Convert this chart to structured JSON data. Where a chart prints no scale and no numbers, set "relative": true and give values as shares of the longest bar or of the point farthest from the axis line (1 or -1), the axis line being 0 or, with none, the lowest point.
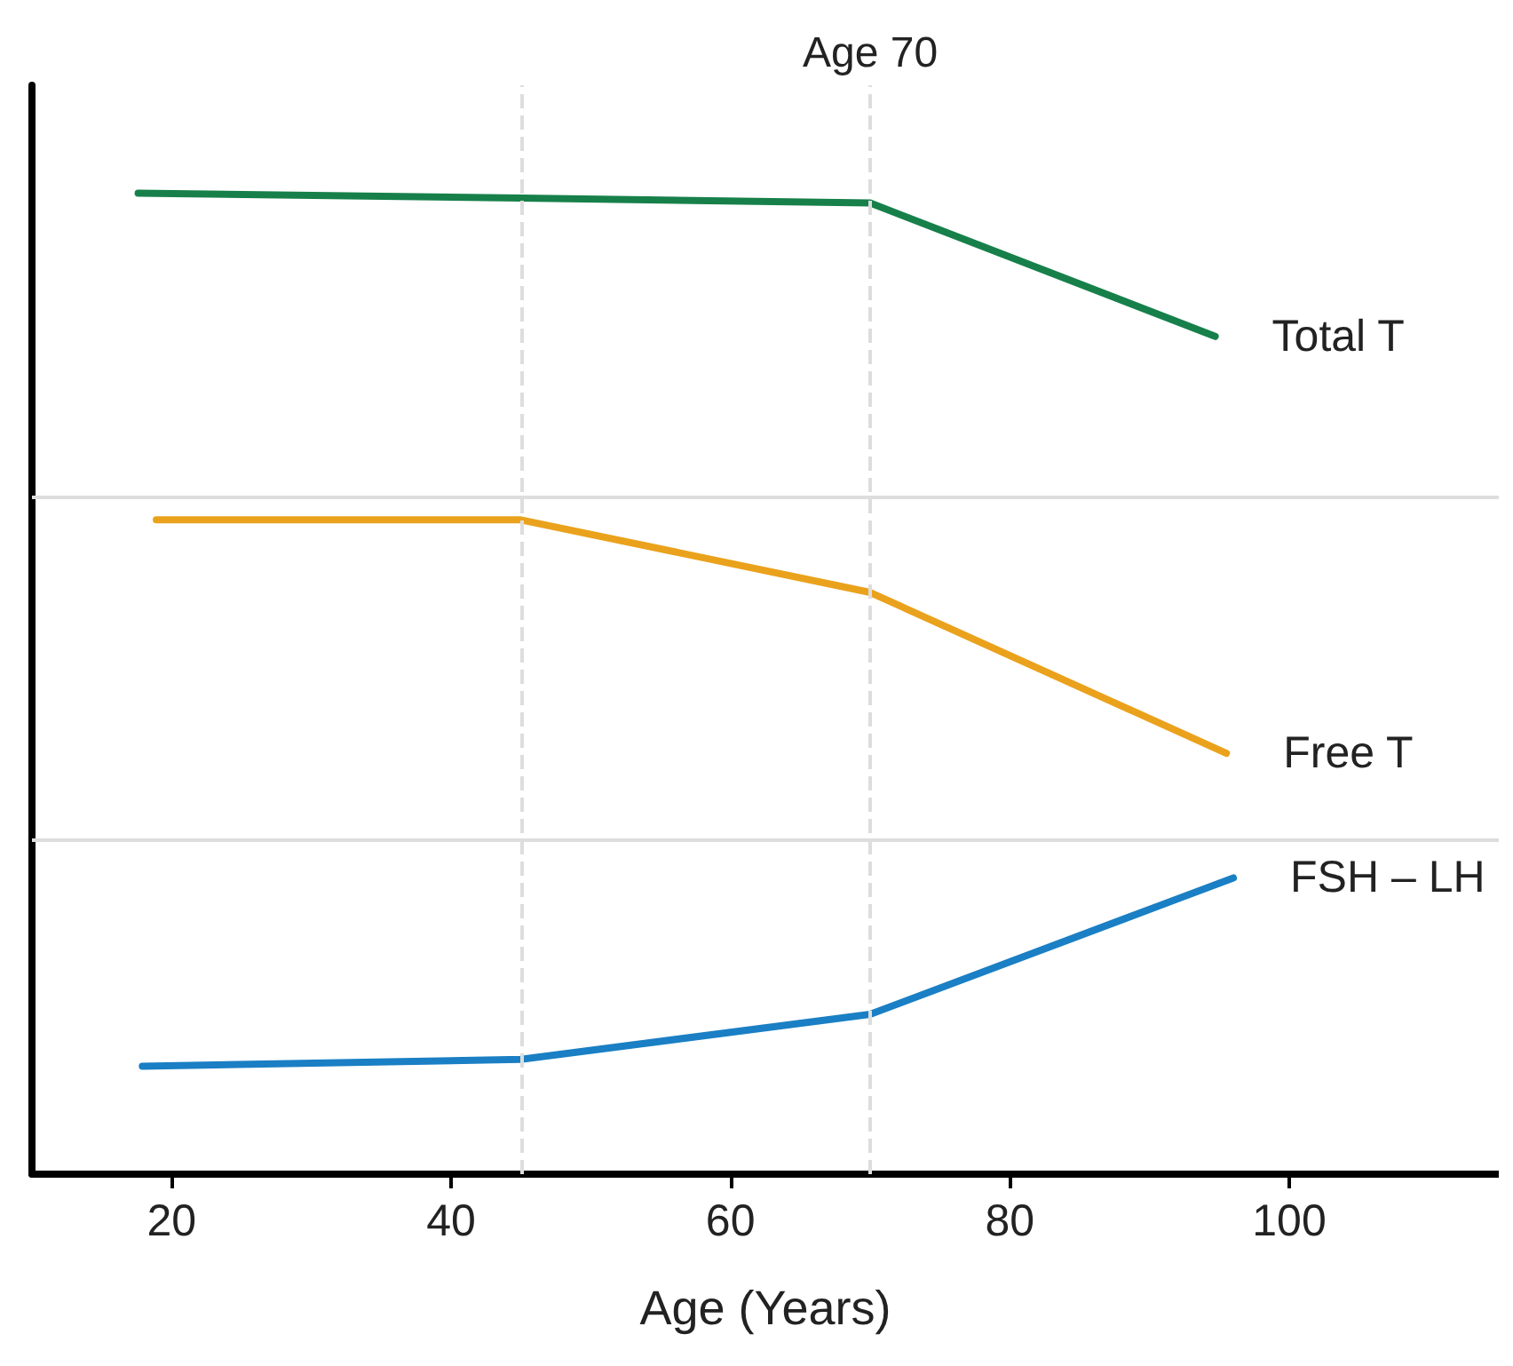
{
  "chart_data": {
    "type": "line",
    "relative": true,
    "xlabel": "Age (Years)",
    "xlim": [
      10,
      115
    ],
    "xticks": [
      20,
      40,
      60,
      80,
      100
    ],
    "legend": false,
    "grid": false,
    "marker": "none",
    "line_style": "solid",
    "series": [
      {
        "name": "Total T",
        "color": "#17804a",
        "x": [
          17.6,
          45,
          70,
          94.7
        ],
        "values": [
          1.0,
          0.995,
          0.99,
          0.854
        ]
      },
      {
        "name": "Free T",
        "color": "#eaa21c",
        "x": [
          18.9,
          45,
          70,
          95.5
        ],
        "values": [
          0.667,
          0.667,
          0.593,
          0.429
        ]
      },
      {
        "name": "FSH – LH",
        "color": "#1a7fc4",
        "x": [
          17.9,
          45,
          70,
          96
        ],
        "values": [
          0.11,
          0.117,
          0.163,
          0.302
        ]
      }
    ],
    "ref_lines": [
      {
        "axis": "x",
        "value": 45,
        "color": "#dddddd",
        "line_style": "dashed"
      },
      {
        "axis": "x",
        "value": 70,
        "label": "Age 70",
        "color": "#dddddd",
        "line_style": "dashed"
      },
      {
        "axis": "y",
        "value": 0.69,
        "color": "#dddddd",
        "line_style": "solid"
      },
      {
        "axis": "y",
        "value": 0.34,
        "color": "#dddddd",
        "line_style": "solid"
      }
    ]
  }
}
